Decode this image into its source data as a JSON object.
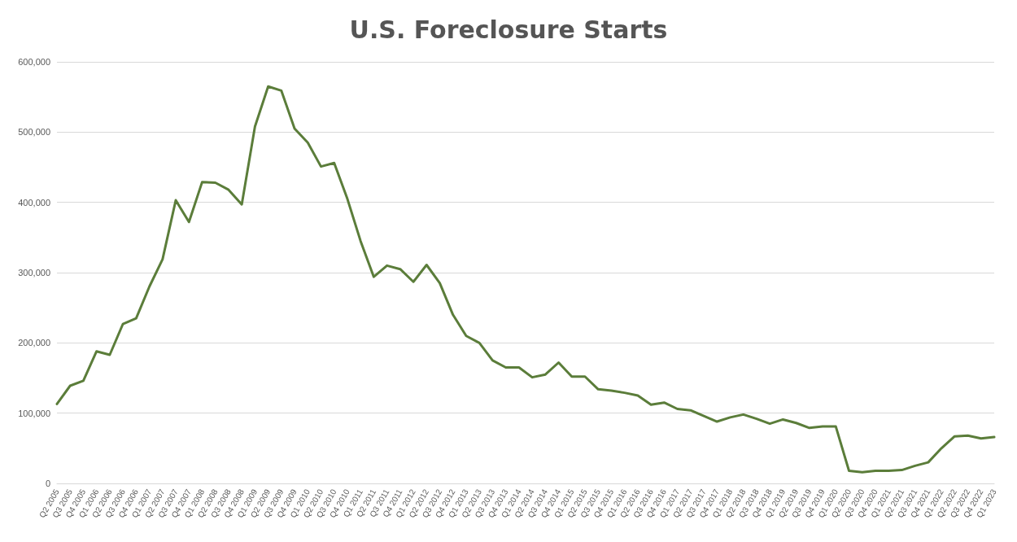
{
  "chart_data": {
    "type": "line",
    "title": "U.S. Foreclosure Starts",
    "categories": [
      "Q2 2005",
      "Q3 2005",
      "Q4 2005",
      "Q1 2006",
      "Q2 2006",
      "Q3 2006",
      "Q4 2006",
      "Q1 2007",
      "Q2 2007",
      "Q3 2007",
      "Q4 2007",
      "Q1 2008",
      "Q2 2008",
      "Q3 2008",
      "Q4 2008",
      "Q1 2009",
      "Q2 2009",
      "Q3 2009",
      "Q4 2009",
      "Q1 2010",
      "Q2 2010",
      "Q3 2010",
      "Q4 2010",
      "Q1 2011",
      "Q2 2011",
      "Q3 2011",
      "Q4 2011",
      "Q1 2012",
      "Q2 2012",
      "Q3 2012",
      "Q4 2012",
      "Q1 2013",
      "Q2 2013",
      "Q3 2013",
      "Q4 2013",
      "Q1 2014",
      "Q2 2014",
      "Q3 2014",
      "Q4 2014",
      "Q1 2015",
      "Q2 2015",
      "Q3 2015",
      "Q4 2015",
      "Q1 2016",
      "Q2 2016",
      "Q3 2016",
      "Q4 2016",
      "Q1 2017",
      "Q2 2017",
      "Q3 2017",
      "Q4 2017",
      "Q1 2018",
      "Q2 2018",
      "Q3 2018",
      "Q4 2018",
      "Q1 2019",
      "Q2 2019",
      "Q3 2019",
      "Q4 2019",
      "Q1 2020",
      "Q2 2020",
      "Q3 2020",
      "Q4 2020",
      "Q1 2021",
      "Q2 2021",
      "Q3 2021",
      "Q4 2021",
      "Q1 2022",
      "Q2 2022",
      "Q3 2022",
      "Q4 2022",
      "Q1 2023"
    ],
    "series": [
      {
        "color": "#5b7d3a",
        "values": [
          113000,
          139000,
          146000,
          188000,
          183000,
          227000,
          235000,
          280000,
          319000,
          403000,
          372000,
          429000,
          428000,
          418000,
          397000,
          508000,
          565000,
          559000,
          505000,
          485000,
          451000,
          456000,
          405000,
          345000,
          294000,
          310000,
          305000,
          287000,
          311000,
          285000,
          240000,
          210000,
          200000,
          175000,
          165000,
          165000,
          151000,
          155000,
          172000,
          152000,
          152000,
          134000,
          132000,
          129000,
          125000,
          112000,
          115000,
          106000,
          104000,
          96000,
          88000,
          94000,
          98000,
          92000,
          85000,
          91000,
          86000,
          79000,
          81000,
          81000,
          18000,
          16000,
          18000,
          18000,
          19000,
          25000,
          30000,
          50000,
          67000,
          68000,
          64000,
          66000
        ]
      }
    ],
    "ylim": [
      0,
      600000
    ],
    "yticks": [
      0,
      {
        "value": 100000,
        "label": "100,000"
      },
      {
        "value": 200000,
        "label": "200,000"
      },
      {
        "value": 300000,
        "label": "300,000"
      },
      {
        "value": 400000,
        "label": "400,000"
      },
      {
        "value": 500000,
        "label": "500,000"
      },
      {
        "value": 600000,
        "label": "600,000"
      }
    ],
    "grid": "y",
    "marker": "none",
    "line_style": "solid"
  }
}
